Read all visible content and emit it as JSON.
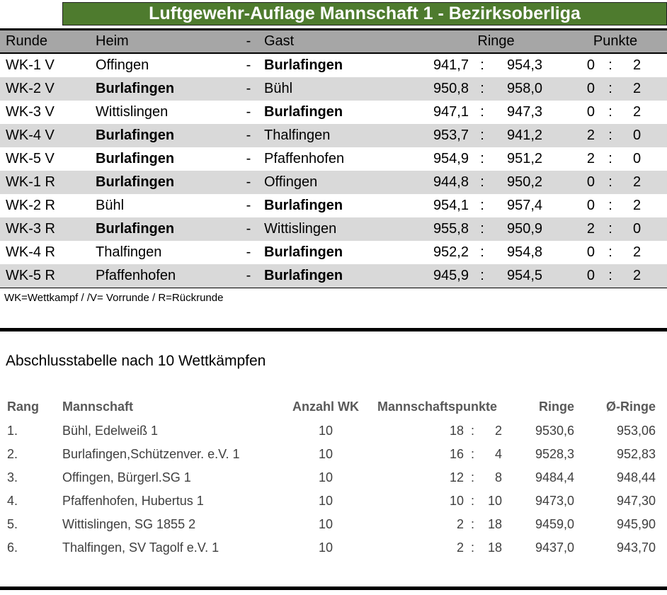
{
  "title": "Luftgewehr-Auflage Mannschaft 1 - Bezirksoberliga",
  "labels": {
    "dash": "-",
    "colon": ":"
  },
  "colors": {
    "title_green": "#4e7b2e",
    "header_gray": "#a6a6a6",
    "row_stripe": "#d9d9d9"
  },
  "results_table": {
    "headers": {
      "runde": "Runde",
      "heim": "Heim",
      "dash": "-",
      "gast": "Gast",
      "ringe": "Ringe",
      "punkte": "Punkte"
    },
    "rows": [
      {
        "runde": "WK-1 V",
        "heim": "Offingen",
        "heim_bold": false,
        "gast": "Burlafingen",
        "gast_bold": true,
        "ringe_heim": "941,7",
        "ringe_gast": "954,3",
        "punkte_heim": "0",
        "punkte_gast": "2"
      },
      {
        "runde": "WK-2 V",
        "heim": "Burlafingen",
        "heim_bold": true,
        "gast": "Bühl",
        "gast_bold": false,
        "ringe_heim": "950,8",
        "ringe_gast": "958,0",
        "punkte_heim": "0",
        "punkte_gast": "2"
      },
      {
        "runde": "WK-3 V",
        "heim": "Wittislingen",
        "heim_bold": false,
        "gast": "Burlafingen",
        "gast_bold": true,
        "ringe_heim": "947,1",
        "ringe_gast": "947,3",
        "punkte_heim": "0",
        "punkte_gast": "2"
      },
      {
        "runde": "WK-4 V",
        "heim": "Burlafingen",
        "heim_bold": true,
        "gast": "Thalfingen",
        "gast_bold": false,
        "ringe_heim": "953,7",
        "ringe_gast": "941,2",
        "punkte_heim": "2",
        "punkte_gast": "0"
      },
      {
        "runde": "WK-5 V",
        "heim": "Burlafingen",
        "heim_bold": true,
        "gast": "Pfaffenhofen",
        "gast_bold": false,
        "ringe_heim": "954,9",
        "ringe_gast": "951,2",
        "punkte_heim": "2",
        "punkte_gast": "0"
      },
      {
        "runde": "WK-1 R",
        "heim": "Burlafingen",
        "heim_bold": true,
        "gast": "Offingen",
        "gast_bold": false,
        "ringe_heim": "944,8",
        "ringe_gast": "950,2",
        "punkte_heim": "0",
        "punkte_gast": "2"
      },
      {
        "runde": "WK-2 R",
        "heim": "Bühl",
        "heim_bold": false,
        "gast": "Burlafingen",
        "gast_bold": true,
        "ringe_heim": "954,1",
        "ringe_gast": "957,4",
        "punkte_heim": "0",
        "punkte_gast": "2"
      },
      {
        "runde": "WK-3 R",
        "heim": "Burlafingen",
        "heim_bold": true,
        "gast": "Wittislingen",
        "gast_bold": false,
        "ringe_heim": "955,8",
        "ringe_gast": "950,9",
        "punkte_heim": "2",
        "punkte_gast": "0"
      },
      {
        "runde": "WK-4 R",
        "heim": "Thalfingen",
        "heim_bold": false,
        "gast": "Burlafingen",
        "gast_bold": true,
        "ringe_heim": "952,2",
        "ringe_gast": "954,8",
        "punkte_heim": "0",
        "punkte_gast": "2"
      },
      {
        "runde": "WK-5 R",
        "heim": "Pfaffenhofen",
        "heim_bold": false,
        "gast": "Burlafingen",
        "gast_bold": true,
        "ringe_heim": "945,9",
        "ringe_gast": "954,5",
        "punkte_heim": "0",
        "punkte_gast": "2"
      }
    ],
    "footnote": "WK=Wettkampf / /V= Vorrunde / R=Rückrunde"
  },
  "standings": {
    "title": "Abschlusstabelle nach 10 Wettkämpfen",
    "headers": {
      "rang": "Rang",
      "mannschaft": "Mannschaft",
      "anzahl": "Anzahl WK",
      "punkte": "Mannschaftspunkte",
      "ringe": "Ringe",
      "avg": "Ø-Ringe"
    },
    "rows": [
      {
        "rang": "1.",
        "mannschaft": "Bühl, Edelweiß 1",
        "anzahl": "10",
        "punkte_plus": "18",
        "punkte_minus": "2",
        "ringe": "9530,6",
        "avg": "953,06"
      },
      {
        "rang": "2.",
        "mannschaft": "Burlafingen,Schützenver. e.V. 1",
        "anzahl": "10",
        "punkte_plus": "16",
        "punkte_minus": "4",
        "ringe": "9528,3",
        "avg": "952,83"
      },
      {
        "rang": "3.",
        "mannschaft": "Offingen, Bürgerl.SG 1",
        "anzahl": "10",
        "punkte_plus": "12",
        "punkte_minus": "8",
        "ringe": "9484,4",
        "avg": "948,44"
      },
      {
        "rang": "4.",
        "mannschaft": "Pfaffenhofen, Hubertus 1",
        "anzahl": "10",
        "punkte_plus": "10",
        "punkte_minus": "10",
        "ringe": "9473,0",
        "avg": "947,30"
      },
      {
        "rang": "5.",
        "mannschaft": "Wittislingen, SG 1855 2",
        "anzahl": "10",
        "punkte_plus": "2",
        "punkte_minus": "18",
        "ringe": "9459,0",
        "avg": "945,90"
      },
      {
        "rang": "6.",
        "mannschaft": "Thalfingen, SV Tagolf e.V. 1",
        "anzahl": "10",
        "punkte_plus": "2",
        "punkte_minus": "18",
        "ringe": "9437,0",
        "avg": "943,70"
      }
    ]
  }
}
